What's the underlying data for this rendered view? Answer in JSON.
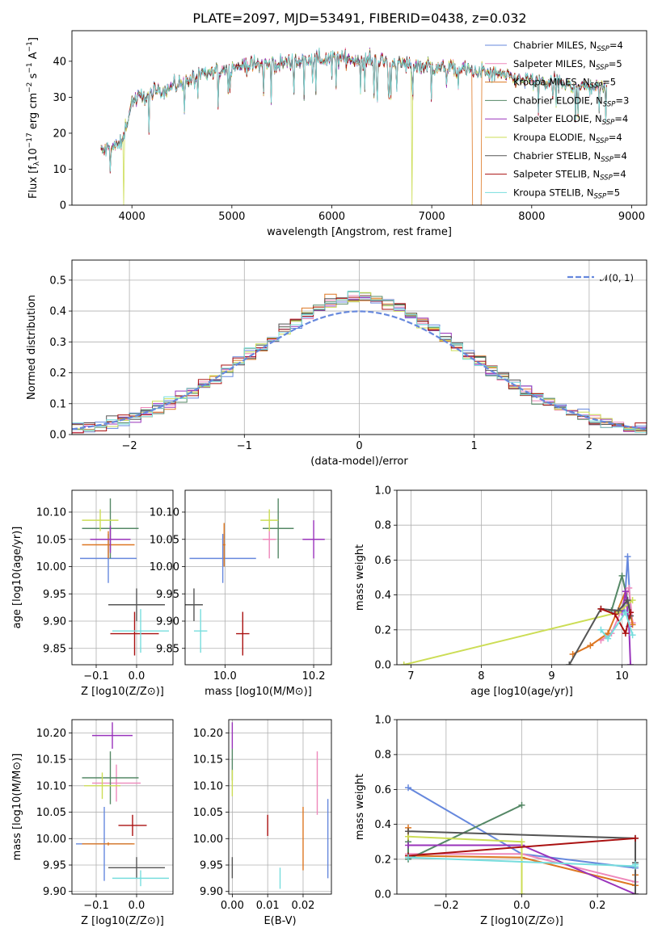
{
  "figure_title": "PLATE=2097, MJD=53491, FIBERID=0438, z=0.032",
  "series": [
    {
      "name": "Chabrier MILES, N",
      "ssp": "=4",
      "color": "#6688dd"
    },
    {
      "name": "Salpeter MILES, N",
      "ssp": "=5",
      "color": "#ee88bb"
    },
    {
      "name": "Kroupa MILES, N",
      "ssp": "=5",
      "color": "#dd7722"
    },
    {
      "name": "Chabrier ELODIE, N",
      "ssp": "=3",
      "color": "#558866"
    },
    {
      "name": "Salpeter ELODIE, N",
      "ssp": "=4",
      "color": "#9933bb"
    },
    {
      "name": "Kroupa ELODIE, N",
      "ssp": "=4",
      "color": "#ccdd55"
    },
    {
      "name": "Chabrier STELIB, N",
      "ssp": "=4",
      "color": "#555555"
    },
    {
      "name": "Salpeter STELIB, N",
      "ssp": "=4",
      "color": "#aa1111"
    },
    {
      "name": "Kroupa STELIB, N",
      "ssp": "=5",
      "color": "#77dddd"
    }
  ],
  "chart_data": [
    {
      "type": "line",
      "title": "PLATE=2097, MJD=53491, FIBERID=0438, z=0.032",
      "xlabel": "wavelength [Angstrom, rest frame]",
      "ylabel": "Flux [f_λ 10^-17 erg cm^-2 s^-1 A^-1]",
      "xlim": [
        3400,
        9150
      ],
      "ylim": [
        0,
        48.5
      ],
      "xticks": [
        4000,
        5000,
        6000,
        7000,
        8000,
        9000
      ],
      "yticks": [
        0,
        10,
        20,
        30,
        40
      ],
      "continuum": {
        "x": [
          3690,
          3900,
          4000,
          4200,
          4500,
          5000,
          5500,
          6000,
          6500,
          7000,
          7500,
          8000,
          8500,
          8750
        ],
        "y": [
          15,
          17,
          29,
          31,
          34,
          38.5,
          39.5,
          41,
          40,
          38.5,
          37,
          34.5,
          33,
          33
        ]
      },
      "drops": [
        {
          "series": "Kroupa ELODIE",
          "x": 6800
        },
        {
          "series": "Kroupa MILES",
          "x": 7410
        },
        {
          "series": "Kroupa ELODIE",
          "x": 3920
        }
      ],
      "legend": "upper right"
    },
    {
      "type": "histogram",
      "xlabel": "(data-model)/error",
      "ylabel": "Normed distribution",
      "xlim": [
        -2.5,
        2.5
      ],
      "ylim": [
        0,
        0.565
      ],
      "xticks": [
        -2,
        -1,
        0,
        1,
        2
      ],
      "yticks": [
        0.0,
        0.1,
        0.2,
        0.3,
        0.4,
        0.5
      ],
      "reference": {
        "label": "N(0,1)",
        "mu": 0,
        "sigma": 1,
        "color": "#6688dd"
      },
      "bin_width": 0.1,
      "legend": "upper right"
    },
    {
      "type": "scatter",
      "xlabel": "Z [log10(Z/Z⊙)]",
      "ylabel": "age [log10(age/yr)]",
      "xlim": [
        -0.16,
        0.09
      ],
      "ylim": [
        9.82,
        10.14
      ],
      "xticks": [
        -0.1,
        0.0
      ],
      "yticks": [
        9.85,
        9.9,
        9.95,
        10.0,
        10.05,
        10.1
      ],
      "points": [
        {
          "x": -0.07,
          "y": 10.015,
          "xerr": 0.07,
          "yerr": 0.045
        },
        {
          "x": -0.065,
          "y": 10.05,
          "xerr": 0.05,
          "yerr": 0.02
        },
        {
          "x": -0.07,
          "y": 10.04,
          "xerr": 0.065,
          "yerr": 0.025
        },
        {
          "x": -0.065,
          "y": 10.07,
          "xerr": 0.07,
          "yerr": 0.055
        },
        {
          "x": -0.065,
          "y": 10.05,
          "xerr": 0.05,
          "yerr": 0.025
        },
        {
          "x": -0.09,
          "y": 10.085,
          "xerr": 0.045,
          "yerr": 0.02
        },
        {
          "x": 0.0,
          "y": 9.93,
          "xerr": 0.07,
          "yerr": 0.03
        },
        {
          "x": -0.005,
          "y": 9.877,
          "xerr": 0.06,
          "yerr": 0.04
        },
        {
          "x": 0.01,
          "y": 9.882,
          "xerr": 0.07,
          "yerr": 0.04
        }
      ]
    },
    {
      "type": "scatter",
      "xlabel": "mass [log10(M/M⊙)]",
      "ylabel": "",
      "xlim": [
        9.91,
        10.24
      ],
      "ylim": [
        9.82,
        10.14
      ],
      "xticks": [
        10.0,
        10.2
      ],
      "yticks": [
        9.85,
        9.9,
        9.95,
        10.0,
        10.05,
        10.1
      ],
      "points": [
        {
          "x": 9.995,
          "y": 10.015,
          "xerr": 0.075,
          "yerr": 0.045
        },
        {
          "x": 10.1,
          "y": 10.05,
          "xerr": 0.015,
          "yerr": 0.035
        },
        {
          "x": 9.998,
          "y": 10.04,
          "xerr": 0.003,
          "yerr": 0.04
        },
        {
          "x": 10.12,
          "y": 10.07,
          "xerr": 0.035,
          "yerr": 0.055
        },
        {
          "x": 10.2,
          "y": 10.05,
          "xerr": 0.025,
          "yerr": 0.035
        },
        {
          "x": 10.1,
          "y": 10.085,
          "xerr": 0.02,
          "yerr": 0.02
        },
        {
          "x": 9.93,
          "y": 9.93,
          "xerr": 0.02,
          "yerr": 0.03
        },
        {
          "x": 10.04,
          "y": 9.877,
          "xerr": 0.015,
          "yerr": 0.04
        },
        {
          "x": 9.945,
          "y": 9.882,
          "xerr": 0.015,
          "yerr": 0.04
        }
      ]
    },
    {
      "type": "line",
      "xlabel": "age [log10(age/yr)]",
      "ylabel": "mass weight",
      "xlim": [
        6.8,
        10.35
      ],
      "ylim": [
        0,
        1.0
      ],
      "xticks": [
        7,
        8,
        9,
        10
      ],
      "yticks": [
        0.0,
        0.2,
        0.4,
        0.6,
        0.8,
        1.0
      ],
      "lines": [
        {
          "x": [
            9.9,
            10.03,
            10.08,
            10.12
          ],
          "y": [
            0.3,
            0.31,
            0.62,
            0.3
          ]
        },
        {
          "x": [
            9.7,
            9.85,
            10.0,
            10.1,
            10.15
          ],
          "y": [
            0.14,
            0.18,
            0.32,
            0.44,
            0.24
          ]
        },
        {
          "x": [
            9.3,
            9.55,
            9.8,
            10.05,
            10.15
          ],
          "y": [
            0.06,
            0.11,
            0.18,
            0.42,
            0.23
          ]
        },
        {
          "x": [
            9.85,
            10.0,
            10.12
          ],
          "y": [
            0.31,
            0.51,
            0.3
          ]
        },
        {
          "x": [
            10.0,
            10.05,
            10.1,
            10.12
          ],
          "y": [
            0.3,
            0.42,
            0.22,
            0.0
          ]
        },
        {
          "x": [
            6.9,
            9.95,
            10.15
          ],
          "y": [
            0.0,
            0.3,
            0.37
          ]
        },
        {
          "x": [
            9.25,
            9.7,
            9.95,
            10.08,
            10.12
          ],
          "y": [
            0.0,
            0.32,
            0.31,
            0.37,
            0.28
          ]
        },
        {
          "x": [
            9.7,
            9.9,
            10.05,
            10.12
          ],
          "y": [
            0.32,
            0.29,
            0.18,
            0.3
          ]
        },
        {
          "x": [
            9.7,
            9.8,
            10.05,
            10.15
          ],
          "y": [
            0.2,
            0.15,
            0.3,
            0.17
          ]
        }
      ]
    },
    {
      "type": "scatter",
      "xlabel": "Z [log10(Z/Z⊙)]",
      "ylabel": "mass [log10(M/M⊙)]",
      "xlim": [
        -0.16,
        0.09
      ],
      "ylim": [
        9.895,
        10.225
      ],
      "xticks": [
        -0.1,
        0.0
      ],
      "yticks": [
        9.9,
        9.95,
        10.0,
        10.05,
        10.1,
        10.15,
        10.2
      ],
      "points": [
        {
          "x": -0.08,
          "y": 9.99,
          "xerr": 0.07,
          "yerr": 0.07
        },
        {
          "x": -0.05,
          "y": 10.105,
          "xerr": 0.06,
          "yerr": 0.035
        },
        {
          "x": -0.07,
          "y": 9.99,
          "xerr": 0.065,
          "yerr": 0.003
        },
        {
          "x": -0.065,
          "y": 10.115,
          "xerr": 0.07,
          "yerr": 0.05
        },
        {
          "x": -0.06,
          "y": 10.195,
          "xerr": 0.05,
          "yerr": 0.025
        },
        {
          "x": -0.085,
          "y": 10.1,
          "xerr": 0.045,
          "yerr": 0.025
        },
        {
          "x": 0.0,
          "y": 9.945,
          "xerr": 0.07,
          "yerr": 0.02
        },
        {
          "x": -0.01,
          "y": 10.025,
          "xerr": 0.035,
          "yerr": 0.02
        },
        {
          "x": 0.01,
          "y": 9.925,
          "xerr": 0.07,
          "yerr": 0.015
        }
      ]
    },
    {
      "type": "scatter",
      "xlabel": "E(B-V)",
      "ylabel": "",
      "xlim": [
        -0.001,
        0.028
      ],
      "ylim": [
        9.895,
        10.225
      ],
      "xticks": [
        0.0,
        0.01,
        0.02
      ],
      "yticks": [
        9.9,
        9.95,
        10.0,
        10.05,
        10.1,
        10.15,
        10.2
      ],
      "points": [
        {
          "x": 0.027,
          "y": 10.0,
          "yerr": 0.075
        },
        {
          "x": 0.024,
          "y": 10.105,
          "yerr": 0.06
        },
        {
          "x": 0.02,
          "y": 10.0,
          "yerr": 0.06
        },
        {
          "x": 0.0,
          "y": 10.14,
          "yerr": 0.03
        },
        {
          "x": 0.0,
          "y": 10.195,
          "yerr": 0.025
        },
        {
          "x": 0.0,
          "y": 10.105,
          "yerr": 0.025
        },
        {
          "x": 0.0,
          "y": 9.945,
          "yerr": 0.02
        },
        {
          "x": 0.01,
          "y": 10.025,
          "yerr": 0.02
        },
        {
          "x": 0.0135,
          "y": 9.925,
          "yerr": 0.02
        }
      ]
    },
    {
      "type": "line",
      "xlabel": "Z [log10(Z/Z⊙)]",
      "ylabel": "mass weight",
      "xlim": [
        -0.33,
        0.33
      ],
      "ylim": [
        0,
        1.0
      ],
      "xticks": [
        -0.2,
        0.0,
        0.2
      ],
      "yticks": [
        0.0,
        0.2,
        0.4,
        0.6,
        0.8,
        1.0
      ],
      "lines": [
        {
          "x": [
            -0.3,
            0.0,
            0.3
          ],
          "y": [
            0.61,
            0.23,
            0.15
          ]
        },
        {
          "x": [
            -0.3,
            0.0,
            0.3
          ],
          "y": [
            0.23,
            0.23,
            0.07
          ]
        },
        {
          "x": [
            -0.3,
            -0.3,
            0.0,
            0.3,
            0.3
          ],
          "y": [
            0.38,
            0.22,
            0.21,
            0.05,
            0.11
          ]
        },
        {
          "x": [
            -0.3,
            -0.3,
            0.0
          ],
          "y": [
            0.3,
            0.2,
            0.51
          ]
        },
        {
          "x": [
            -0.3,
            0.0,
            0.3
          ],
          "y": [
            0.28,
            0.28,
            0.0
          ]
        },
        {
          "x": [
            -0.3,
            0.0,
            0.0
          ],
          "y": [
            0.33,
            0.3,
            0.0
          ]
        },
        {
          "x": [
            -0.3,
            0.3,
            0.3,
            0.3
          ],
          "y": [
            0.36,
            0.32,
            0.0,
            0.18
          ]
        },
        {
          "x": [
            -0.3,
            0.3
          ],
          "y": [
            0.22,
            0.32
          ]
        },
        {
          "x": [
            -0.3,
            0.3,
            0.3
          ],
          "y": [
            0.21,
            0.16,
            0.17
          ]
        }
      ]
    }
  ]
}
